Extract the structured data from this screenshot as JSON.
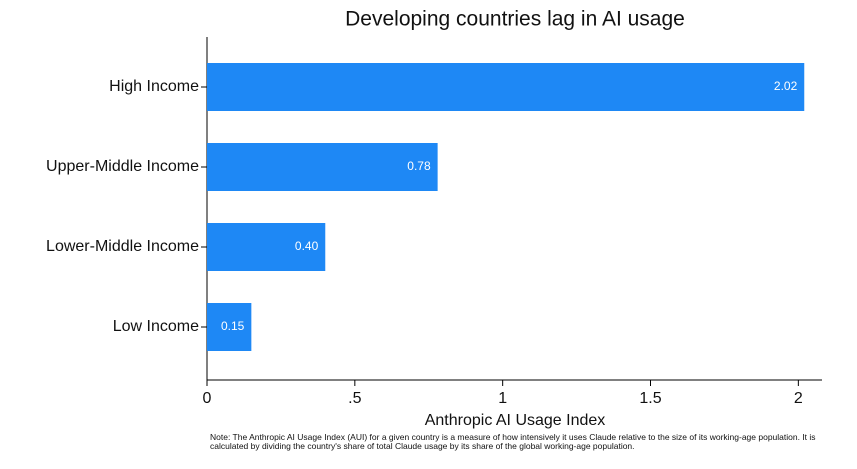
{
  "chart_data": {
    "type": "hbar",
    "title": "Developing countries lag in AI usage",
    "x_label": "Anthropic AI Usage Index",
    "categories": [
      "High Income",
      "Upper-Middle Income",
      "Lower-Middle Income",
      "Low Income"
    ],
    "values": [
      2.02,
      0.78,
      0.4,
      0.15
    ],
    "value_labels": [
      "2.02",
      "0.78",
      "0.40",
      "0.15"
    ],
    "color": "#1e88f5",
    "xlim": [
      0,
      2.08
    ],
    "xticks": [
      0,
      {
        "value": 0.5,
        "label": ".5"
      },
      1,
      1.5,
      2
    ],
    "grid": false,
    "note": "Note: The Anthropic AI Usage Index (AUI) for a given country is a measure of how intensively it uses Claude relative to the size of its working-age population. It is calculated by dividing the country's share of total Claude usage by its share of the global working-age population."
  }
}
